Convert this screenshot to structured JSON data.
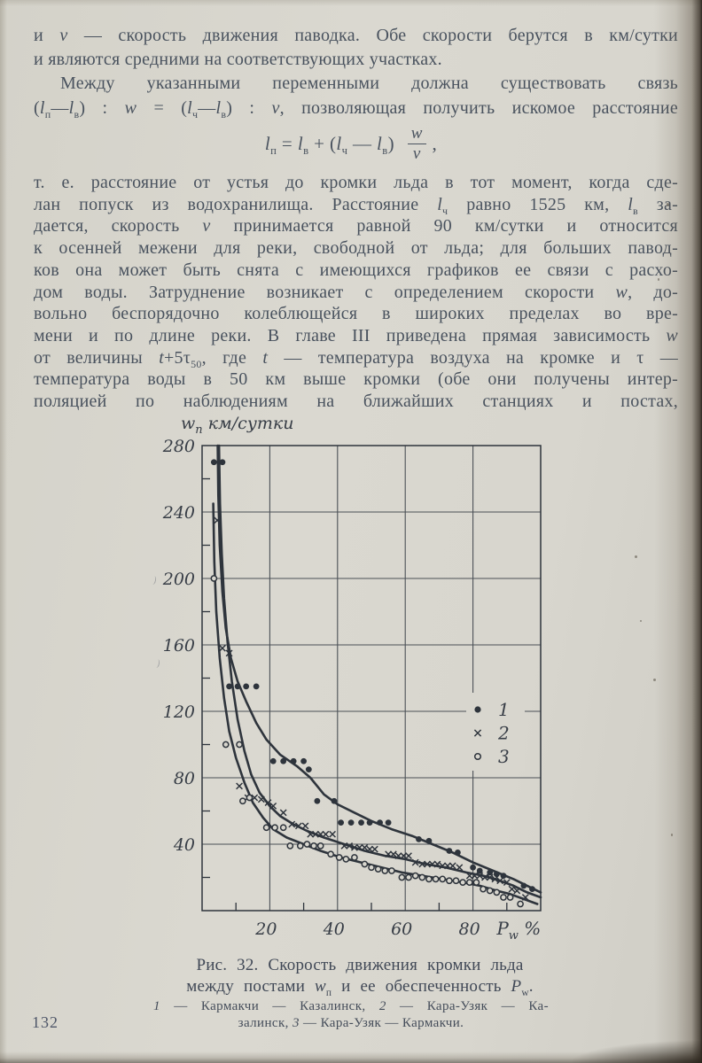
{
  "page": {
    "number": "132"
  },
  "paragraph1": {
    "lines": [
      {
        "t": "и *v* — скорость движения паводка. Обе скорости берутся в км/сутки",
        "j": 1
      },
      {
        "t": "и являются средними на соответствующих участках.",
        "j": 0
      },
      {
        "t": "Между указанными переменными должна существовать связь",
        "j": 1,
        "in": 1
      },
      {
        "t": "(*l*_п_—*l*_в_) : *w* = (*l*_ч_—*l*_в_) : *v*, позволяющая получить искомое расстояние",
        "j": 1
      }
    ]
  },
  "formula": {
    "lhs": "*l*_п_ = *l*_в_ + (*l*_ч_ — *l*_в_)",
    "numerator": "*w*",
    "denominator": "*v*",
    "tail": " ,"
  },
  "paragraph2": {
    "lines": [
      {
        "t": "т. е. расстояние от устья до кромки льда в тот момент, когда сде-",
        "j": 1
      },
      {
        "t": "лан попуск из водохранилища. Расстояние *l*_ч_ равно 1525 км, *l*_в_ за-",
        "j": 1
      },
      {
        "t": "дается, скорость *v* принимается равной 90 км/сутки и относится",
        "j": 1
      },
      {
        "t": "к осенней межени для реки, свободной от льда; для больших павод-",
        "j": 1
      },
      {
        "t": "ков она может быть снята с имеющихся графиков ее связи с расхо-",
        "j": 1
      },
      {
        "t": "дом воды. Затруднение возникает с определением скорости *w*, до-",
        "j": 1
      },
      {
        "t": "вольно беспорядочно колеблющейся в широких пределах во вре-",
        "j": 1
      },
      {
        "t": "мени и по длине реки. В главе III приведена прямая зависимость *w*",
        "j": 1
      },
      {
        "t": "от величины *t*+5τ_50_, где *t* — температура воздуха на кромке и τ —",
        "j": 1
      },
      {
        "t": "температура воды в 50 км выше кромки (обе они получены интер-",
        "j": 1
      },
      {
        "t": "поляцией по наблюдениям на ближайших станциях и постах,",
        "j": 1
      }
    ]
  },
  "figure": {
    "caption_lines": [
      {
        "t": "Рис. 32. Скорость движения кромки льда",
        "j": 0
      },
      {
        "t": "между постами *w*_п_ и ее обеспеченность *P*_w_.",
        "j": 0
      }
    ],
    "note_lines": [
      {
        "t": "*1* — Кармакчи — Казалинск, *2* — Кара-Узяк — Ка-",
        "j": 1
      },
      {
        "t": "залинск, *3* — Кара-Узяк — Кармакчи.",
        "j": 0
      }
    ]
  },
  "chart_data": {
    "type": "scatter",
    "title": "Рис. 32. Скорость движения кромки льда между постами wп и ее обеспеченность Pw",
    "ylabel": "w_п_ км/сутки",
    "xlabel": "P_w_ %",
    "xlim": [
      0,
      100
    ],
    "ylim": [
      0,
      280
    ],
    "x_ticks": [
      20,
      40,
      60,
      80
    ],
    "y_ticks": [
      40,
      80,
      120,
      160,
      200,
      240,
      280
    ],
    "x_minor_ticks": [
      10,
      30,
      50,
      70,
      90
    ],
    "y_minor_ticks": [
      20,
      60,
      100,
      140,
      180,
      220,
      260
    ],
    "grid": true,
    "legend_position": "inside-upper-right",
    "ink": "#2e343c",
    "grid_color": "#4b5056",
    "label_color": "#373d46",
    "paper": "#d8d6ce",
    "legend": [
      {
        "marker": "filled-circle",
        "label": "1"
      },
      {
        "marker": "x",
        "label": "2"
      },
      {
        "marker": "open-circle",
        "label": "3"
      }
    ],
    "series": [
      {
        "label": "1",
        "name": "Кармакчи — Казалинск",
        "marker": "filled-circle",
        "points": [
          [
            3.5,
            270
          ],
          [
            6,
            270
          ],
          [
            8,
            135
          ],
          [
            10.5,
            135
          ],
          [
            13,
            135
          ],
          [
            16,
            135
          ],
          [
            21,
            90
          ],
          [
            24,
            90
          ],
          [
            27,
            90
          ],
          [
            30,
            90
          ],
          [
            31.5,
            85
          ],
          [
            34,
            66
          ],
          [
            39,
            66
          ],
          [
            41,
            53
          ],
          [
            44,
            53
          ],
          [
            47,
            53
          ],
          [
            49.5,
            53
          ],
          [
            52.5,
            53
          ],
          [
            55,
            53
          ],
          [
            64,
            43
          ],
          [
            67,
            42
          ],
          [
            73,
            36
          ],
          [
            75.5,
            35
          ],
          [
            80,
            26
          ],
          [
            82,
            24
          ],
          [
            85,
            23
          ],
          [
            87,
            22
          ],
          [
            89,
            21
          ],
          [
            95,
            15
          ],
          [
            97.5,
            13
          ]
        ],
        "trend": [
          [
            4.6,
            280
          ],
          [
            4.8,
            250
          ],
          [
            5.2,
            220
          ],
          [
            6,
            192
          ],
          [
            7,
            170
          ],
          [
            8.5,
            152
          ],
          [
            10.5,
            138
          ],
          [
            13,
            126
          ],
          [
            16,
            113
          ],
          [
            19,
            103
          ],
          [
            23,
            94
          ],
          [
            28,
            87
          ],
          [
            32,
            80
          ],
          [
            36,
            70
          ],
          [
            40,
            64
          ],
          [
            45,
            59
          ],
          [
            50,
            54
          ],
          [
            56,
            49
          ],
          [
            62,
            45
          ],
          [
            68,
            40
          ],
          [
            74,
            35
          ],
          [
            80,
            29
          ],
          [
            86,
            24
          ],
          [
            92,
            19
          ],
          [
            100,
            11
          ]
        ]
      },
      {
        "label": "2",
        "name": "Кара-Узяк — Казалинск",
        "marker": "x",
        "points": [
          [
            4.5,
            235
          ],
          [
            6,
            158
          ],
          [
            8,
            155
          ],
          [
            11,
            75
          ],
          [
            13.5,
            68
          ],
          [
            15.5,
            68
          ],
          [
            17.5,
            67
          ],
          [
            19.5,
            65
          ],
          [
            21,
            63
          ],
          [
            24,
            59
          ],
          [
            26.5,
            52
          ],
          [
            28.5,
            51
          ],
          [
            30.5,
            51
          ],
          [
            32,
            46
          ],
          [
            33.5,
            46
          ],
          [
            35,
            46
          ],
          [
            36.5,
            46
          ],
          [
            38.5,
            46
          ],
          [
            42,
            39
          ],
          [
            43.5,
            39
          ],
          [
            45,
            38
          ],
          [
            46.5,
            38
          ],
          [
            48,
            38
          ],
          [
            49.5,
            37
          ],
          [
            51,
            37
          ],
          [
            55,
            34
          ],
          [
            56.5,
            34
          ],
          [
            58,
            33
          ],
          [
            59.5,
            33
          ],
          [
            61,
            33
          ],
          [
            63,
            29
          ],
          [
            65,
            28
          ],
          [
            66.5,
            28
          ],
          [
            68,
            28
          ],
          [
            69.5,
            28
          ],
          [
            71,
            27
          ],
          [
            72.5,
            27
          ],
          [
            74,
            27
          ],
          [
            76,
            26
          ],
          [
            79,
            21
          ],
          [
            80.5,
            21
          ],
          [
            82,
            21
          ],
          [
            83.5,
            20
          ],
          [
            85,
            20
          ],
          [
            86.5,
            19
          ],
          [
            88,
            18
          ],
          [
            90,
            17
          ],
          [
            91.5,
            13
          ],
          [
            93,
            12
          ],
          [
            95.5,
            8
          ]
        ],
        "trend": [
          [
            5,
            280
          ],
          [
            5.3,
            245
          ],
          [
            5.8,
            215
          ],
          [
            6.5,
            188
          ],
          [
            7.5,
            162
          ],
          [
            8.8,
            138
          ],
          [
            10.5,
            115
          ],
          [
            12.5,
            96
          ],
          [
            14.5,
            82
          ],
          [
            17,
            71
          ],
          [
            20,
            63
          ],
          [
            23,
            57
          ],
          [
            27,
            52
          ],
          [
            31,
            48
          ],
          [
            36,
            44
          ],
          [
            42,
            40
          ],
          [
            48,
            36
          ],
          [
            54,
            33
          ],
          [
            60,
            31
          ],
          [
            66,
            28
          ],
          [
            72,
            26
          ],
          [
            78,
            23
          ],
          [
            83,
            21
          ],
          [
            88,
            18
          ],
          [
            92,
            15
          ],
          [
            96,
            11
          ],
          [
            100,
            8
          ]
        ]
      },
      {
        "label": "3",
        "name": "Кара-Узяк — Кармакчи",
        "marker": "open-circle",
        "points": [
          [
            3.5,
            200
          ],
          [
            7,
            100
          ],
          [
            11,
            100
          ],
          [
            12,
            66
          ],
          [
            14,
            68
          ],
          [
            19,
            50
          ],
          [
            21.5,
            50
          ],
          [
            24,
            50
          ],
          [
            26,
            39
          ],
          [
            29,
            39
          ],
          [
            31,
            40
          ],
          [
            33,
            39
          ],
          [
            35,
            39
          ],
          [
            38,
            34
          ],
          [
            40.5,
            32
          ],
          [
            42.5,
            31
          ],
          [
            45,
            32
          ],
          [
            48,
            28
          ],
          [
            50,
            26
          ],
          [
            52,
            25
          ],
          [
            54,
            24
          ],
          [
            56,
            24
          ],
          [
            59,
            20
          ],
          [
            61,
            20
          ],
          [
            63,
            21
          ],
          [
            65,
            20
          ],
          [
            67,
            19
          ],
          [
            69,
            19
          ],
          [
            71,
            19
          ],
          [
            73,
            18
          ],
          [
            75,
            18
          ],
          [
            77,
            17
          ],
          [
            79,
            17
          ],
          [
            81,
            17
          ],
          [
            83,
            13
          ],
          [
            85,
            12
          ],
          [
            87,
            11
          ],
          [
            89,
            8
          ],
          [
            91,
            8
          ],
          [
            94,
            4
          ]
        ],
        "trend": [
          [
            3.3,
            245
          ],
          [
            3.6,
            210
          ],
          [
            4.2,
            180
          ],
          [
            5.2,
            152
          ],
          [
            6.5,
            128
          ],
          [
            8,
            108
          ],
          [
            10,
            92
          ],
          [
            12.5,
            77
          ],
          [
            15,
            65
          ],
          [
            18,
            56
          ],
          [
            21,
            49
          ],
          [
            25,
            44
          ],
          [
            30,
            40
          ],
          [
            35,
            36
          ],
          [
            41,
            32
          ],
          [
            47,
            29
          ],
          [
            53,
            26
          ],
          [
            59,
            23
          ],
          [
            65,
            21
          ],
          [
            71,
            19
          ],
          [
            77,
            17
          ],
          [
            82,
            15
          ],
          [
            87,
            12
          ],
          [
            91,
            10
          ],
          [
            95,
            7
          ],
          [
            99,
            4
          ]
        ]
      }
    ]
  }
}
